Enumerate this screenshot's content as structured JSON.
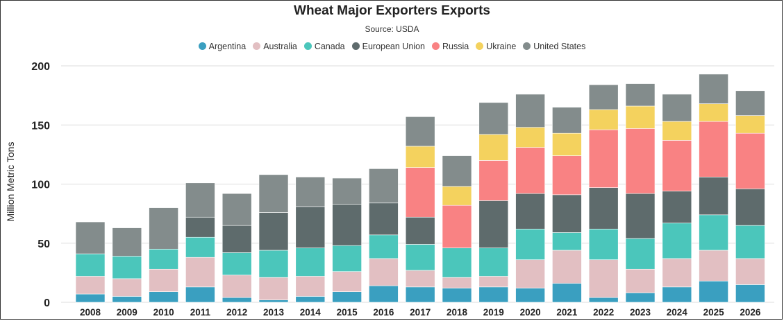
{
  "chart_data": {
    "type": "bar",
    "stacked": true,
    "title": "Wheat Major Exporters Exports",
    "subtitle": "Source: USDA",
    "xlabel": "",
    "ylabel": "Million Metric Tons",
    "ylim": [
      0,
      200
    ],
    "yticks": [
      0,
      50,
      100,
      150,
      200
    ],
    "grid": true,
    "legend_position": "top",
    "categories": [
      "2008",
      "2009",
      "2010",
      "2011",
      "2012",
      "2013",
      "2014",
      "2015",
      "2016",
      "2017",
      "2018",
      "2019",
      "2020",
      "2021",
      "2022",
      "2023",
      "2024",
      "2025",
      "2026"
    ],
    "series": [
      {
        "name": "Argentina",
        "color": "#3a9fc0",
        "values": [
          7,
          5,
          9,
          13,
          4,
          2,
          5,
          9,
          14,
          13,
          12,
          13,
          12,
          16,
          4,
          8,
          13,
          18,
          15
        ]
      },
      {
        "name": "Australia",
        "color": "#e2bfc2",
        "values": [
          15,
          15,
          19,
          25,
          19,
          19,
          17,
          17,
          23,
          14,
          9,
          9,
          24,
          28,
          32,
          20,
          24,
          26,
          22
        ]
      },
      {
        "name": "Canada",
        "color": "#4bc6bb",
        "values": [
          19,
          19,
          17,
          17,
          19,
          23,
          24,
          22,
          20,
          22,
          25,
          24,
          26,
          15,
          26,
          26,
          30,
          30,
          28
        ]
      },
      {
        "name": "European Union",
        "color": "#5e6b6c",
        "values": [
          0,
          0,
          0,
          17,
          23,
          32,
          35,
          35,
          27,
          23,
          0,
          40,
          30,
          32,
          35,
          38,
          27,
          32,
          31
        ]
      },
      {
        "name": "Russia",
        "color": "#f98283",
        "values": [
          0,
          0,
          0,
          0,
          0,
          0,
          0,
          0,
          0,
          42,
          36,
          34,
          39,
          33,
          49,
          55,
          43,
          47,
          47
        ]
      },
      {
        "name": "Ukraine",
        "color": "#f4d25e",
        "values": [
          0,
          0,
          0,
          0,
          0,
          0,
          0,
          0,
          0,
          18,
          16,
          22,
          17,
          19,
          17,
          19,
          16,
          15,
          15
        ]
      },
      {
        "name": "United States",
        "color": "#838c8c",
        "values": [
          27,
          24,
          35,
          29,
          27,
          32,
          25,
          22,
          29,
          25,
          26,
          27,
          28,
          22,
          21,
          19,
          23,
          25,
          21
        ]
      }
    ]
  }
}
